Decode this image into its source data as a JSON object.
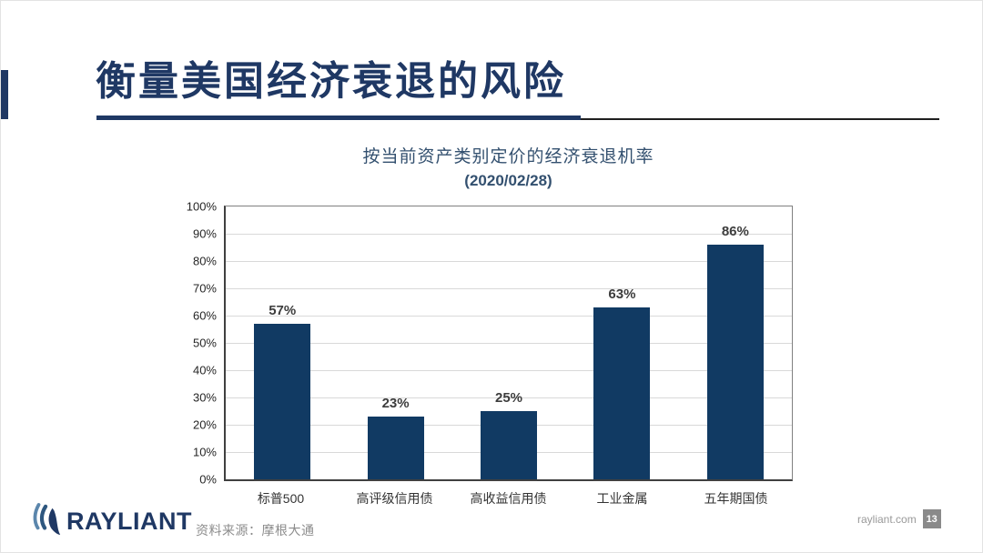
{
  "slide": {
    "title": "衡量美国经济衰退的风险",
    "source_note": "资料来源：摩根大通",
    "logo_text": "RAYLIANT",
    "website": "rayliant.com",
    "page_number": "13"
  },
  "chart_data": {
    "type": "bar",
    "title": "按当前资产类别定价的经济衰退机率",
    "subtitle": "(2020/02/28)",
    "categories": [
      "标普500",
      "高评级信用债",
      "高收益信用债",
      "工业金属",
      "五年期国债"
    ],
    "values": [
      57,
      23,
      25,
      63,
      86
    ],
    "value_labels": [
      "57%",
      "23%",
      "25%",
      "63%",
      "86%"
    ],
    "xlabel": "",
    "ylabel": "",
    "ylim": [
      0,
      100
    ],
    "ytick_step": 10,
    "ytick_suffix": "%",
    "grid": true,
    "legend": false,
    "bar_color": "#113A63"
  },
  "colors": {
    "accent_navy": "#1F3864",
    "bar_navy": "#113A63",
    "chart_title_color": "#33506F",
    "gray_text": "#8C8C8C",
    "badge_bg": "#8A8A8A"
  }
}
